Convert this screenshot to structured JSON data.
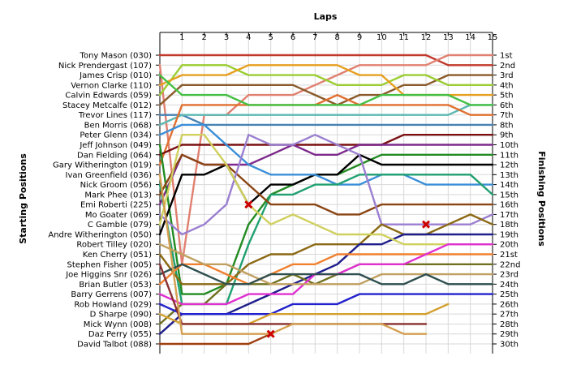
{
  "chart_data": {
    "type": "line",
    "title": "Laps",
    "ylabel_left": "Starting Positions",
    "ylabel_right": "Finishing Positions",
    "x": [
      0,
      1,
      2,
      3,
      4,
      5,
      6,
      7,
      8,
      9,
      10,
      11,
      12,
      13,
      14,
      15
    ],
    "x_tick_labels": [
      "1",
      "2",
      "3",
      "4",
      "5",
      "6",
      "7",
      "8",
      "9",
      "10",
      "11",
      "12",
      "13",
      "14",
      "15"
    ],
    "ylim": [
      1,
      30
    ],
    "y_reversed": true,
    "grid": true,
    "starting_labels": [
      "Tony Mason (030)",
      "Nick Prendergast (107)",
      "James Crisp (010)",
      "Vernon Clarke (110)",
      "Calvin Edwards (059)",
      "Stacey Metcalfe (012)",
      "Trevor Lines (117)",
      "Ben Morris (068)",
      "Peter Glenn (034)",
      "Jeff Johnson (049)",
      "Dan Fielding (064)",
      "Gary Witherington (019)",
      "Ivan Greenfield (036)",
      "Nick Groom (056)",
      "Mark Phee (013)",
      "Emi Roberti (225)",
      "Mo Goater (069)",
      "C Gamble (079)",
      "Andre Witherington (050)",
      "Robert Tilley (020)",
      "Ken Cherry (051)",
      "Stephen Fisher (005)",
      "Joe Higgins Snr (026)",
      "Brian Butler (053)",
      "Barry Gerrens (007)",
      "Rob Howland (029)",
      "D Sharpe (090)",
      "Mick Wynn (008)",
      "Daz Perry (055)",
      "David Talbot (088)"
    ],
    "finishing_labels": [
      "1st",
      "2nd",
      "3rd",
      "4th",
      "5th",
      "6th",
      "7th",
      "8th",
      "9th",
      "10th",
      "11th",
      "12th",
      "13th",
      "14th",
      "15th",
      "16th",
      "17th",
      "18th",
      "19th",
      "20th",
      "21st",
      "22nd",
      "23rd",
      "24th",
      "25th",
      "26th",
      "27th",
      "28th",
      "29th",
      "30th"
    ],
    "series": [
      {
        "color": "#c0392b",
        "values": [
          1,
          1,
          1,
          1,
          1,
          1,
          1,
          1,
          1,
          1,
          1,
          1,
          1,
          2,
          2,
          2
        ]
      },
      {
        "color": "#e08070",
        "values": [
          2,
          22,
          7,
          7,
          5,
          5,
          5,
          4,
          3,
          2,
          2,
          2,
          2,
          1,
          1,
          1
        ]
      },
      {
        "color": "#8b5a2b",
        "values": [
          6,
          4,
          4,
          4,
          4,
          4,
          4,
          5,
          6,
          5,
          5,
          4,
          4,
          3,
          3,
          3
        ]
      },
      {
        "color": "#9acd32",
        "values": [
          5,
          2,
          2,
          2,
          3,
          3,
          3,
          3,
          4,
          4,
          4,
          3,
          3,
          4,
          4,
          4
        ]
      },
      {
        "color": "#e6a020",
        "values": [
          4,
          3,
          3,
          3,
          2,
          2,
          2,
          2,
          2,
          3,
          3,
          5,
          5,
          5,
          5,
          5
        ]
      },
      {
        "color": "#4682b4",
        "values": [
          7,
          7,
          8,
          8,
          8,
          8,
          8,
          8,
          8,
          8,
          8,
          8,
          8,
          8,
          8,
          8
        ]
      },
      {
        "color": "#5cb8b2",
        "values": [
          8,
          7,
          7,
          7,
          7,
          7,
          7,
          7,
          7,
          7,
          7,
          7,
          7,
          7,
          6,
          6
        ]
      },
      {
        "color": "#e07030",
        "values": [
          12,
          6,
          6,
          6,
          6,
          6,
          6,
          6,
          5,
          6,
          6,
          6,
          6,
          6,
          7,
          7
        ]
      },
      {
        "color": "#44c044",
        "values": [
          3,
          5,
          5,
          5,
          6,
          6,
          6,
          6,
          6,
          6,
          5,
          5,
          5,
          5,
          6,
          6
        ]
      },
      {
        "color": "#7a1010",
        "values": [
          11,
          10,
          10,
          10,
          10,
          10,
          10,
          10,
          10,
          10,
          10,
          9,
          9,
          9,
          9,
          9
        ]
      },
      {
        "color": "#7d2a8c",
        "values": [
          16,
          11,
          12,
          12,
          12,
          11,
          10,
          11,
          11,
          10,
          10,
          10,
          10,
          10,
          10,
          10
        ]
      },
      {
        "color": "#228b22",
        "values": [
          10,
          25,
          25,
          24,
          18,
          15,
          14,
          13,
          13,
          12,
          11,
          11,
          11,
          11,
          11,
          11
        ]
      },
      {
        "color": "#000000",
        "values": [
          19,
          13,
          13,
          12,
          16,
          14,
          14,
          13,
          13,
          11,
          12,
          12,
          12,
          12,
          12,
          12
        ]
      },
      {
        "color": "#3a8fd8",
        "values": [
          9,
          8,
          8,
          10,
          12,
          13,
          13,
          13,
          14,
          14,
          13,
          13,
          14,
          14,
          14,
          14
        ]
      },
      {
        "color": "#20a070",
        "values": [
          14,
          26,
          26,
          26,
          20,
          15,
          15,
          14,
          14,
          13,
          13,
          13,
          13,
          13,
          13,
          15
        ]
      },
      {
        "color": "#8b4513",
        "values": [
          15,
          11,
          12,
          12,
          14,
          16,
          16,
          16,
          17,
          17,
          16,
          16,
          16,
          16,
          16,
          16
        ]
      },
      {
        "color": "#9b7fd0",
        "values": [
          17,
          19,
          18,
          16,
          9,
          10,
          10,
          9,
          10,
          11,
          18,
          18,
          18,
          18,
          18,
          17
        ]
      },
      {
        "color": "#8b6914",
        "values": [
          21,
          24,
          24,
          24,
          22,
          21,
          21,
          20,
          20,
          20,
          18,
          19,
          19,
          18,
          17,
          18
        ]
      },
      {
        "color": "#1e1e8c",
        "values": [
          29,
          27,
          27,
          27,
          26,
          25,
          24,
          23,
          22,
          20,
          20,
          19,
          19,
          19,
          19,
          19
        ]
      },
      {
        "color": "#d0d060",
        "values": [
          18,
          9,
          9,
          12,
          16,
          18,
          17,
          18,
          19,
          19,
          19,
          20,
          20,
          20,
          20,
          20
        ]
      },
      {
        "color": "#f08030",
        "values": [
          24,
          22,
          22,
          23,
          24,
          23,
          22,
          22,
          21,
          21,
          21,
          21,
          21,
          21,
          21,
          21
        ]
      },
      {
        "color": "#707020",
        "values": [
          28,
          26,
          26,
          24,
          24,
          24,
          23,
          24,
          23,
          22,
          22,
          22,
          22,
          22,
          22,
          22
        ]
      },
      {
        "color": "#e030d0",
        "values": [
          25,
          26,
          26,
          26,
          25,
          25,
          25,
          23,
          23,
          22,
          22,
          22,
          21,
          20,
          20,
          20
        ]
      },
      {
        "color": "#c0a060",
        "values": [
          20,
          21,
          22,
          22,
          23,
          24,
          24,
          24,
          24,
          24,
          23,
          23,
          23,
          23,
          23,
          23
        ]
      },
      {
        "color": "#2f4f4f",
        "values": [
          23,
          22,
          23,
          24,
          24,
          23,
          23,
          23,
          23,
          23,
          24,
          24,
          23,
          24,
          24,
          24
        ]
      },
      {
        "color": "#2222cc",
        "values": [
          26,
          27,
          27,
          27,
          27,
          27,
          26,
          26,
          26,
          25,
          25,
          25,
          25,
          25,
          25,
          25
        ]
      },
      {
        "color": "#d4a030",
        "values": [
          27,
          28,
          28,
          28,
          28,
          27,
          27,
          27,
          27,
          27,
          27,
          27,
          27,
          26,
          null,
          null
        ]
      },
      {
        "color": "#8b3030",
        "values": [
          22,
          28,
          28,
          28,
          28,
          28,
          28,
          28,
          28,
          28,
          28,
          28,
          28,
          null,
          null,
          null
        ]
      },
      {
        "color": "#a04010",
        "values": [
          30,
          30,
          30,
          30,
          30,
          29,
          null,
          null,
          null,
          null,
          null,
          null,
          null,
          null,
          null,
          null
        ]
      },
      {
        "color": "#d4a050",
        "values": [
          13,
          29,
          29,
          29,
          29,
          29,
          28,
          28,
          28,
          28,
          28,
          29,
          29,
          null,
          null,
          null
        ]
      }
    ],
    "retirements": [
      {
        "lap": 4,
        "position": 16
      },
      {
        "lap": 5,
        "position": 29
      },
      {
        "lap": 12,
        "position": 18
      }
    ]
  }
}
